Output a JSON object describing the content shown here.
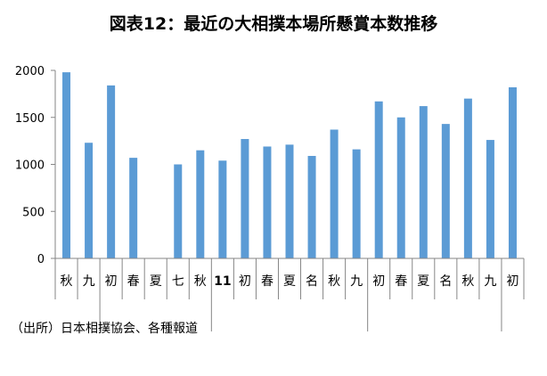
{
  "chart_data": {
    "type": "bar",
    "title": "図表12：最近の大相撲本場所懸賞本数推移",
    "categories": [
      "秋",
      "九",
      "初",
      "春",
      "夏",
      "七",
      "秋",
      "11",
      "初",
      "春",
      "夏",
      "名",
      "秋",
      "九",
      "初",
      "春",
      "夏",
      "名",
      "秋",
      "九",
      "初"
    ],
    "values": [
      1980,
      1230,
      1840,
      1070,
      0,
      1000,
      1150,
      1040,
      1270,
      1190,
      1210,
      1090,
      1370,
      1160,
      1670,
      1500,
      1620,
      1430,
      1700,
      1260,
      1820
    ],
    "ylim": [
      0,
      2000
    ],
    "yticks": [
      0,
      500,
      1000,
      1500,
      2000
    ],
    "grid": false,
    "legend": "none",
    "bar_color": "#5b9bd5",
    "axis_color": "#868686",
    "source": "（出所）日本相撲協会、各種報道"
  }
}
